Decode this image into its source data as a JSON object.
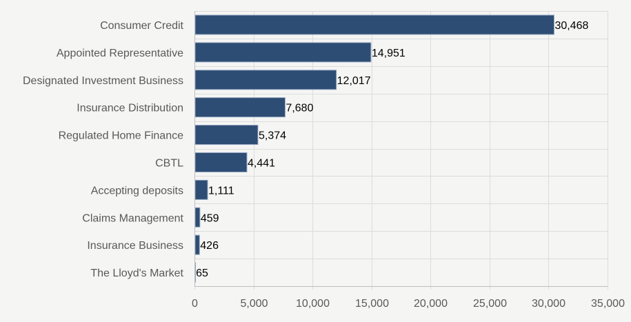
{
  "chart_data": {
    "type": "bar",
    "orientation": "horizontal",
    "title": "",
    "xlabel": "",
    "ylabel": "",
    "categories": [
      "Consumer Credit",
      "Appointed Representative",
      "Designated Investment Business",
      "Insurance Distribution",
      "Regulated Home Finance",
      "CBTL",
      "Accepting deposits",
      "Claims Management",
      "Insurance Business",
      "The Lloyd's Market"
    ],
    "values": [
      30468,
      14951,
      12017,
      7680,
      5374,
      4441,
      1111,
      459,
      426,
      65
    ],
    "value_labels": [
      "30,468",
      "14,951",
      "12,017",
      "7,680",
      "5,374",
      "4,441",
      "1,111",
      "459",
      "426",
      "65"
    ],
    "xlim": [
      0,
      35000
    ],
    "ticks": [
      0,
      5000,
      10000,
      15000,
      20000,
      25000,
      30000,
      35000
    ],
    "tick_labels": [
      "0",
      "5,000",
      "10,000",
      "15,000",
      "20,000",
      "25,000",
      "30,000",
      "35,000"
    ],
    "grid": true,
    "legend": "none",
    "colors": {
      "bar": "#2e4d74",
      "bar_edge": "#8fa3bd",
      "background": "#f5f5f4"
    }
  }
}
